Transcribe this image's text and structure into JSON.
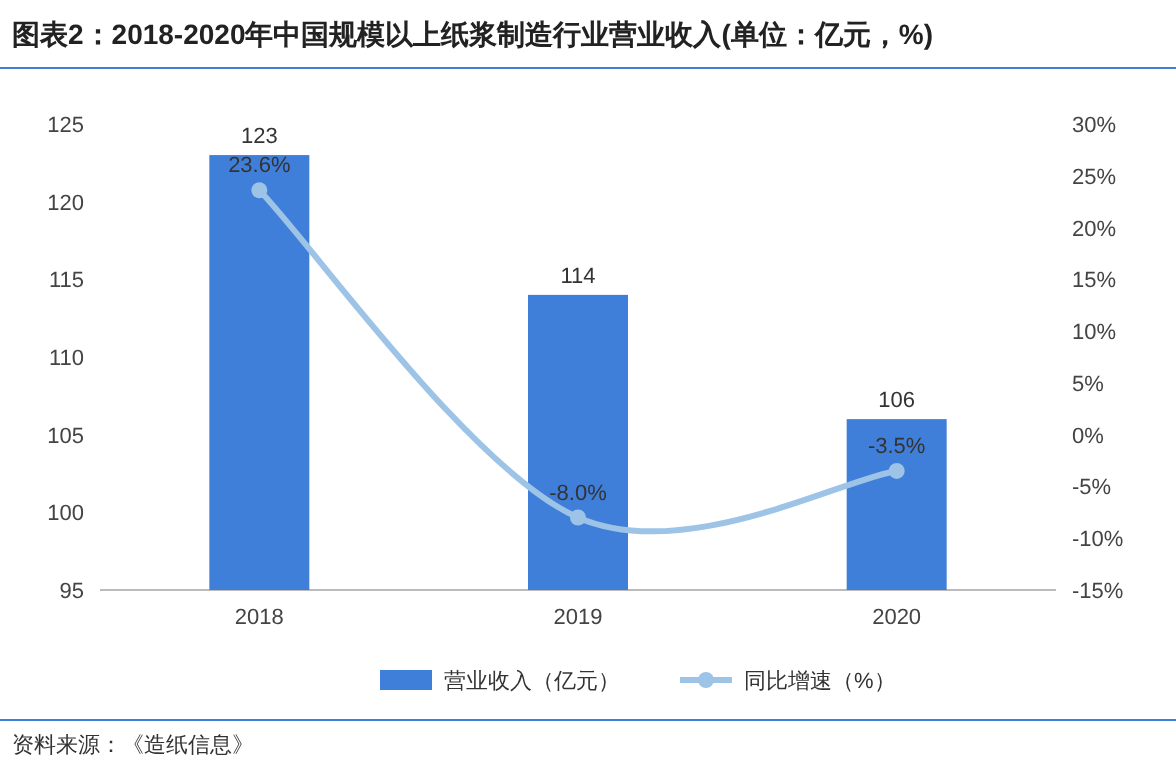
{
  "chart_data": {
    "type": "bar",
    "title": "图表2：2018-2020年中国规模以上纸浆制造行业营业收入(单位：亿元，%)",
    "categories": [
      "2018",
      "2019",
      "2020"
    ],
    "series": [
      {
        "name": "营业收入（亿元）",
        "color": "#3f7fd9",
        "values": [
          123,
          114,
          106
        ],
        "value_labels": [
          "123",
          "114",
          "106"
        ]
      },
      {
        "name": "同比增速（%）",
        "type": "line",
        "axis": "y2",
        "color": "#9dc3e6",
        "marker": "circle",
        "values": [
          23.6,
          -8.0,
          -3.5
        ],
        "value_labels": [
          "23.6%",
          "-8.0%",
          "-3.5%"
        ]
      }
    ],
    "ylim": [
      95,
      125
    ],
    "yticks": [
      95,
      100,
      105,
      110,
      115,
      120,
      125
    ],
    "y2lim": [
      -15,
      30
    ],
    "y2ticks": [
      {
        "value": -15,
        "label": "-15%"
      },
      {
        "value": -10,
        "label": "-10%"
      },
      {
        "value": -5,
        "label": "-5%"
      },
      {
        "value": 0,
        "label": "0%"
      },
      {
        "value": 5,
        "label": "5%"
      },
      {
        "value": 10,
        "label": "10%"
      },
      {
        "value": 15,
        "label": "15%"
      },
      {
        "value": 20,
        "label": "20%"
      },
      {
        "value": 25,
        "label": "25%"
      },
      {
        "value": 30,
        "label": "30%"
      }
    ],
    "legend": "bottom",
    "grid": false,
    "annotations": [
      "资料来源：《造纸信息》"
    ]
  }
}
